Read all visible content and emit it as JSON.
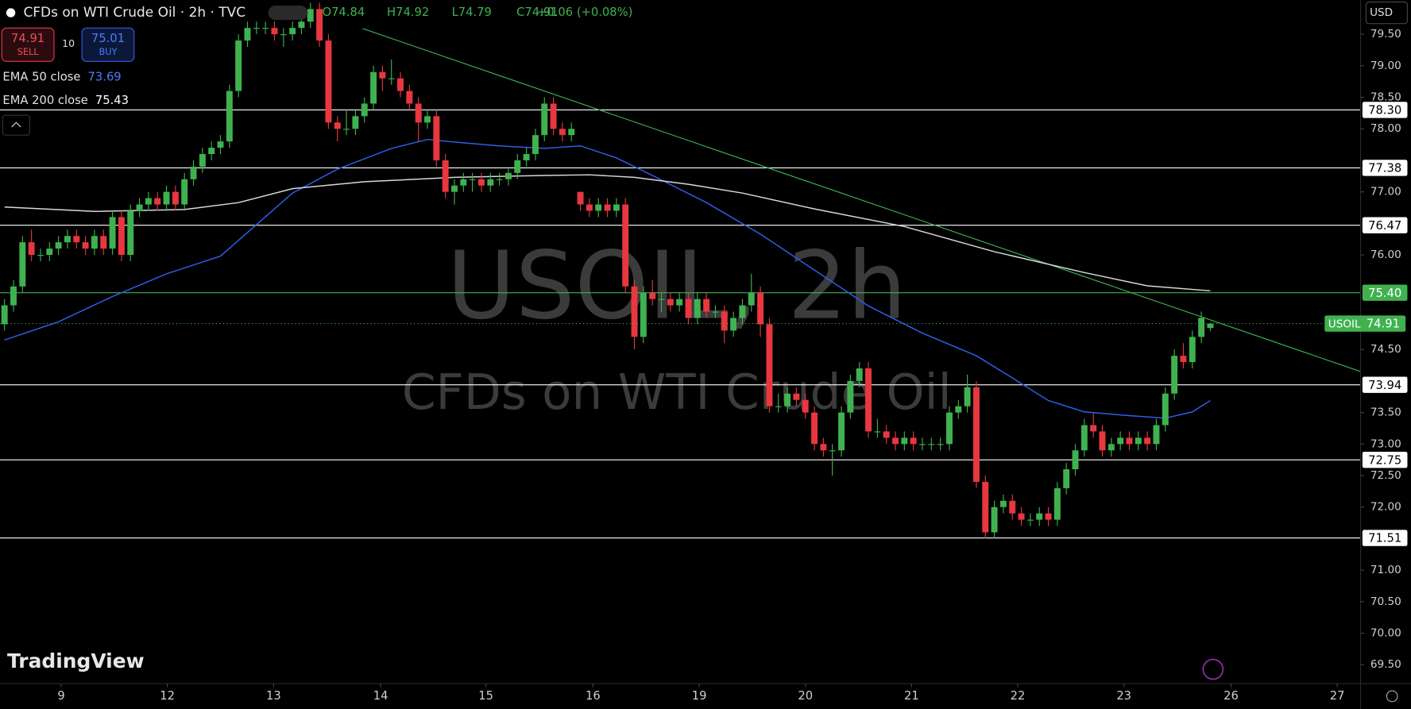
{
  "header": {
    "symbol": "CFDs on WTI Crude Oil · 2h · TVC",
    "ohlc": [
      "O74.84",
      "H74.92",
      "L74.79",
      "C74.91"
    ],
    "change": "+0.06 (+0.08%)",
    "sell_price": "74.91",
    "sell": "SELL",
    "quantity": "10",
    "buy_price": "75.01",
    "buy": "BUY",
    "currency": "USD",
    "logo": "TradingView",
    "watermark": "USOIL, 2h",
    "watermark_sub": "CFDs on WTI Crude Oil"
  },
  "chart_data": {
    "type": "candlestick",
    "up_color": "#3fb24f",
    "down_color": "#e8373f",
    "xlim": [
      -0.5,
      150.7
    ],
    "ylim": [
      69.2,
      80.04
    ],
    "xticks": [
      {
        "value": 6.3,
        "label": "9"
      },
      {
        "value": 18.1,
        "label": "12"
      },
      {
        "value": 29.9,
        "label": "13"
      },
      {
        "value": 41.8,
        "label": "14"
      },
      {
        "value": 53.5,
        "label": "15"
      },
      {
        "value": 65.4,
        "label": "16"
      },
      {
        "value": 77.2,
        "label": "19"
      },
      {
        "value": 89,
        "label": "20"
      },
      {
        "value": 100.8,
        "label": "21"
      },
      {
        "value": 112.6,
        "label": "22"
      },
      {
        "value": 124.4,
        "label": "23"
      },
      {
        "value": 136.3,
        "label": "26"
      },
      {
        "value": 148.1,
        "label": "27"
      }
    ],
    "yticks": [
      {
        "value": 79.5,
        "label": "79.50"
      },
      {
        "value": 79,
        "label": "79.00"
      },
      {
        "value": 78.5,
        "label": "78.50"
      },
      {
        "value": 78,
        "label": "78.00"
      },
      {
        "value": 77,
        "label": "77.00"
      },
      {
        "value": 76,
        "label": "76.00"
      },
      {
        "value": 74.5,
        "label": "74.50"
      },
      {
        "value": 73.5,
        "label": "73.50"
      },
      {
        "value": 73,
        "label": "73.00"
      },
      {
        "value": 72.5,
        "label": "72.50"
      },
      {
        "value": 72,
        "label": "72.00"
      },
      {
        "value": 71,
        "label": "71.00"
      },
      {
        "value": 70.5,
        "label": "70.50"
      },
      {
        "value": 70,
        "label": "70.00"
      },
      {
        "value": 69.5,
        "label": "69.50"
      }
    ],
    "levels": [
      {
        "value": 78.3,
        "label": "78.30",
        "color": "#ffffff"
      },
      {
        "value": 77.38,
        "label": "77.38",
        "color": "#ffffff"
      },
      {
        "value": 76.47,
        "label": "76.47",
        "color": "#ffffff"
      },
      {
        "value": 75.4,
        "label": "75.40",
        "color": "#3fb24f"
      },
      {
        "value": 73.94,
        "label": "73.94",
        "color": "#ffffff"
      },
      {
        "value": 72.75,
        "label": "72.75",
        "color": "#ffffff"
      },
      {
        "value": 71.51,
        "label": "71.51",
        "color": "#ffffff"
      }
    ],
    "trendline": {
      "color": "#3fb24f",
      "x": [
        39.8,
        150.7
      ],
      "values": [
        79.59,
        74.15
      ]
    },
    "last_name": "USOIL",
    "last_price": 74.91,
    "series": [
      {
        "name": "EMA 50 close",
        "last_value": 73.69,
        "color": "#2f5ee8",
        "x": [
          0,
          6,
          12,
          18,
          24,
          28,
          32,
          37,
          43,
          47,
          50,
          55,
          60,
          64,
          68,
          72,
          78,
          84,
          90,
          96,
          102,
          108,
          112,
          116,
          120,
          125,
          129,
          132,
          134
        ],
        "values": [
          74.65,
          74.94,
          75.34,
          75.7,
          75.98,
          76.48,
          76.98,
          77.36,
          77.69,
          77.83,
          77.79,
          77.73,
          77.69,
          77.73,
          77.54,
          77.26,
          76.83,
          76.33,
          75.76,
          75.19,
          74.76,
          74.4,
          74.05,
          73.69,
          73.51,
          73.45,
          73.41,
          73.51,
          73.69
        ]
      },
      {
        "name": "EMA 200 close",
        "last_value": 75.43,
        "color": "#d8d8d8",
        "x": [
          0,
          10,
          20,
          26,
          32,
          40,
          50,
          60,
          65,
          70,
          76,
          82,
          90,
          100,
          110,
          120,
          127,
          134
        ],
        "values": [
          76.76,
          76.69,
          76.72,
          76.83,
          77.05,
          77.16,
          77.23,
          77.26,
          77.27,
          77.23,
          77.12,
          76.98,
          76.73,
          76.45,
          76.05,
          75.72,
          75.51,
          75.43
        ]
      }
    ],
    "candles": [
      [
        74.9,
        75.3,
        74.8,
        75.2
      ],
      [
        75.2,
        75.6,
        75.1,
        75.5
      ],
      [
        75.5,
        76.3,
        75.4,
        76.2
      ],
      [
        76.2,
        76.4,
        75.9,
        76.0
      ],
      [
        76.0,
        76.1,
        75.9,
        76.0
      ],
      [
        76.0,
        76.2,
        75.9,
        76.1
      ],
      [
        76.1,
        76.3,
        76.0,
        76.2
      ],
      [
        76.2,
        76.4,
        76.1,
        76.3
      ],
      [
        76.3,
        76.4,
        76.1,
        76.2
      ],
      [
        76.2,
        76.3,
        76.0,
        76.1
      ],
      [
        76.1,
        76.4,
        76.0,
        76.3
      ],
      [
        76.3,
        76.4,
        76.0,
        76.1
      ],
      [
        76.1,
        76.7,
        76.0,
        76.6
      ],
      [
        76.6,
        76.7,
        75.9,
        76.0
      ],
      [
        76.0,
        76.8,
        75.9,
        76.7
      ],
      [
        76.7,
        76.9,
        76.6,
        76.8
      ],
      [
        76.8,
        77.0,
        76.7,
        76.9
      ],
      [
        76.9,
        77.0,
        76.7,
        76.8
      ],
      [
        76.8,
        77.1,
        76.7,
        77.0
      ],
      [
        77.0,
        77.1,
        76.7,
        76.8
      ],
      [
        76.8,
        77.3,
        76.7,
        77.2
      ],
      [
        77.2,
        77.5,
        77.1,
        77.4
      ],
      [
        77.4,
        77.7,
        77.3,
        77.6
      ],
      [
        77.6,
        77.8,
        77.5,
        77.7
      ],
      [
        77.7,
        77.9,
        77.6,
        77.8
      ],
      [
        77.8,
        78.7,
        77.7,
        78.6
      ],
      [
        78.6,
        79.5,
        78.5,
        79.4
      ],
      [
        79.4,
        79.7,
        79.3,
        79.6
      ],
      [
        79.6,
        79.7,
        79.5,
        79.6
      ],
      [
        79.6,
        79.7,
        79.5,
        79.6
      ],
      [
        79.6,
        79.7,
        79.4,
        79.5
      ],
      [
        79.5,
        79.6,
        79.3,
        79.5
      ],
      [
        79.5,
        79.7,
        79.4,
        79.6
      ],
      [
        79.6,
        79.8,
        79.5,
        79.7
      ],
      [
        79.7,
        80.0,
        79.6,
        79.9
      ],
      [
        79.9,
        80.0,
        79.3,
        79.4
      ],
      [
        79.4,
        79.5,
        78.0,
        78.1
      ],
      [
        78.1,
        78.2,
        77.8,
        78.0
      ],
      [
        78.0,
        78.3,
        77.9,
        78.0
      ],
      [
        78.0,
        78.3,
        77.9,
        78.2
      ],
      [
        78.2,
        78.5,
        78.1,
        78.4
      ],
      [
        78.4,
        79.0,
        78.3,
        78.9
      ],
      [
        78.9,
        79.0,
        78.6,
        78.8
      ],
      [
        78.8,
        79.1,
        78.7,
        78.8
      ],
      [
        78.8,
        78.9,
        78.5,
        78.6
      ],
      [
        78.6,
        78.7,
        78.3,
        78.4
      ],
      [
        78.4,
        78.5,
        77.8,
        78.1
      ],
      [
        78.1,
        78.3,
        78.0,
        78.2
      ],
      [
        78.2,
        78.3,
        77.4,
        77.5
      ],
      [
        77.5,
        77.6,
        76.9,
        77.0
      ],
      [
        77.0,
        77.2,
        76.8,
        77.1
      ],
      [
        77.1,
        77.3,
        77.0,
        77.2
      ],
      [
        77.2,
        77.3,
        77.0,
        77.2
      ],
      [
        77.2,
        77.3,
        77.0,
        77.1
      ],
      [
        77.1,
        77.3,
        77.0,
        77.2
      ],
      [
        77.2,
        77.3,
        77.1,
        77.2
      ],
      [
        77.2,
        77.4,
        77.1,
        77.3
      ],
      [
        77.3,
        77.6,
        77.2,
        77.5
      ],
      [
        77.5,
        77.7,
        77.4,
        77.6
      ],
      [
        77.6,
        78.0,
        77.5,
        77.9
      ],
      [
        77.9,
        78.5,
        77.8,
        78.4
      ],
      [
        78.4,
        78.5,
        77.9,
        78.0
      ],
      [
        78.0,
        78.1,
        77.8,
        77.9
      ],
      [
        77.9,
        78.1,
        77.8,
        78.0
      ],
      [
        77.0,
        77.0,
        76.7,
        76.8
      ],
      [
        76.8,
        76.9,
        76.6,
        76.7
      ],
      [
        76.7,
        76.9,
        76.6,
        76.8
      ],
      [
        76.8,
        76.9,
        76.6,
        76.7
      ],
      [
        76.7,
        76.9,
        76.6,
        76.8
      ],
      [
        76.8,
        76.9,
        75.4,
        75.5
      ],
      [
        75.5,
        75.6,
        74.5,
        74.7
      ],
      [
        74.7,
        75.5,
        74.6,
        75.4
      ],
      [
        75.4,
        75.6,
        75.2,
        75.3
      ],
      [
        75.3,
        75.4,
        75.1,
        75.3
      ],
      [
        75.3,
        75.4,
        75.1,
        75.2
      ],
      [
        75.2,
        75.4,
        75.1,
        75.3
      ],
      [
        75.3,
        75.4,
        74.9,
        75.0
      ],
      [
        75.0,
        75.4,
        74.9,
        75.3
      ],
      [
        75.3,
        75.4,
        75.0,
        75.1
      ],
      [
        75.1,
        75.2,
        75.0,
        75.1
      ],
      [
        75.1,
        75.2,
        74.6,
        74.8
      ],
      [
        74.8,
        75.1,
        74.7,
        75.0
      ],
      [
        75.0,
        75.3,
        74.9,
        75.2
      ],
      [
        75.2,
        75.7,
        75.1,
        75.4
      ],
      [
        75.4,
        75.5,
        74.7,
        74.9
      ],
      [
        74.9,
        75.0,
        73.5,
        73.6
      ],
      [
        73.6,
        73.8,
        73.5,
        73.6
      ],
      [
        73.6,
        73.9,
        73.5,
        73.8
      ],
      [
        73.8,
        73.9,
        73.6,
        73.7
      ],
      [
        73.7,
        73.8,
        73.4,
        73.5
      ],
      [
        73.5,
        73.6,
        72.9,
        73.0
      ],
      [
        73.0,
        73.1,
        72.8,
        72.9
      ],
      [
        72.9,
        73.0,
        72.5,
        72.9
      ],
      [
        72.9,
        73.6,
        72.8,
        73.5
      ],
      [
        73.5,
        74.1,
        73.4,
        74.0
      ],
      [
        74.0,
        74.3,
        73.9,
        74.2
      ],
      [
        74.2,
        74.3,
        73.1,
        73.2
      ],
      [
        73.2,
        73.4,
        73.1,
        73.2
      ],
      [
        73.2,
        73.3,
        73.0,
        73.1
      ],
      [
        73.1,
        73.2,
        72.9,
        73.0
      ],
      [
        73.0,
        73.2,
        72.9,
        73.1
      ],
      [
        73.1,
        73.2,
        72.9,
        73.0
      ],
      [
        73.0,
        73.1,
        72.9,
        73.0
      ],
      [
        73.0,
        73.1,
        72.9,
        73.0
      ],
      [
        73.0,
        73.1,
        72.9,
        73.0
      ],
      [
        73.0,
        73.6,
        72.9,
        73.5
      ],
      [
        73.5,
        73.7,
        73.4,
        73.6
      ],
      [
        73.6,
        74.1,
        73.5,
        73.9
      ],
      [
        73.9,
        74.0,
        72.3,
        72.4
      ],
      [
        72.4,
        72.5,
        71.5,
        71.6
      ],
      [
        71.6,
        72.1,
        71.5,
        72.0
      ],
      [
        72.0,
        72.2,
        71.9,
        72.1
      ],
      [
        72.1,
        72.2,
        71.8,
        71.9
      ],
      [
        71.9,
        72.0,
        71.7,
        71.8
      ],
      [
        71.8,
        71.9,
        71.7,
        71.8
      ],
      [
        71.8,
        72.0,
        71.7,
        71.9
      ],
      [
        71.9,
        72.0,
        71.7,
        71.8
      ],
      [
        71.8,
        72.4,
        71.7,
        72.3
      ],
      [
        72.3,
        72.7,
        72.2,
        72.6
      ],
      [
        72.6,
        73.0,
        72.5,
        72.9
      ],
      [
        72.9,
        73.4,
        72.8,
        73.3
      ],
      [
        73.3,
        73.5,
        73.1,
        73.2
      ],
      [
        73.2,
        73.3,
        72.8,
        72.9
      ],
      [
        72.9,
        73.1,
        72.8,
        73.0
      ],
      [
        73.0,
        73.2,
        72.9,
        73.1
      ],
      [
        73.1,
        73.2,
        72.9,
        73.0
      ],
      [
        73.0,
        73.2,
        72.9,
        73.1
      ],
      [
        73.1,
        73.2,
        72.9,
        73.0
      ],
      [
        73.0,
        73.4,
        72.9,
        73.3
      ],
      [
        73.3,
        73.9,
        73.2,
        73.8
      ],
      [
        73.8,
        74.5,
        73.7,
        74.4
      ],
      [
        74.4,
        74.6,
        74.2,
        74.3
      ],
      [
        74.3,
        74.8,
        74.2,
        74.7
      ],
      [
        74.7,
        75.1,
        74.6,
        75.0
      ],
      [
        74.84,
        74.92,
        74.79,
        74.91
      ]
    ]
  }
}
